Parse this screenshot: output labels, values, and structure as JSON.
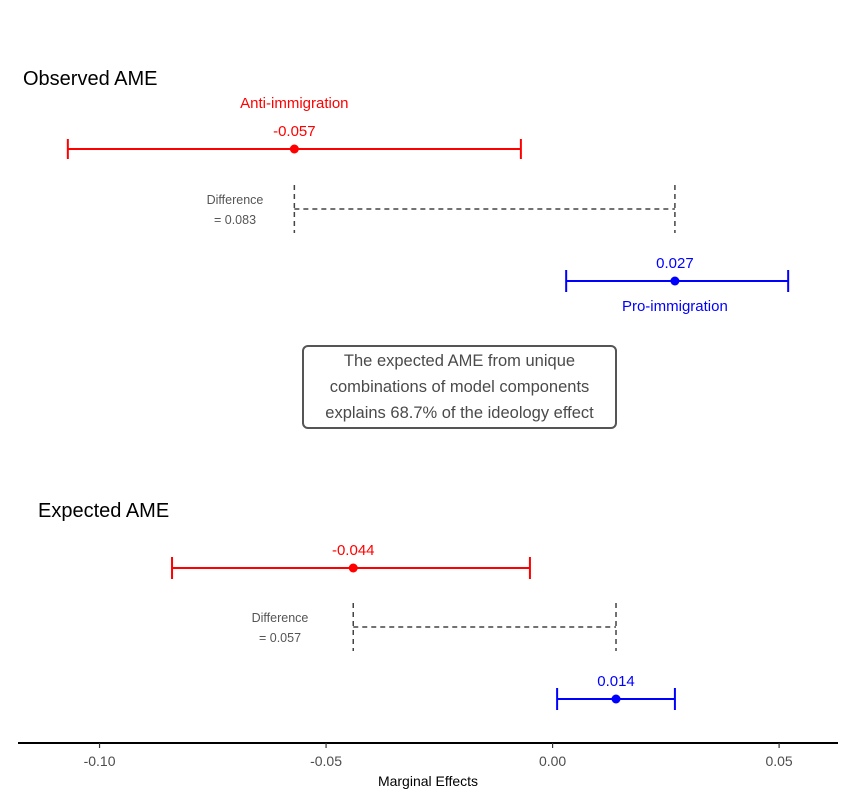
{
  "chart_data": {
    "type": "errorbar",
    "xlabel": "Marginal Effects",
    "xlim": [
      -0.118,
      0.063
    ],
    "xticks": [
      -0.1,
      -0.05,
      0.0,
      0.05
    ],
    "xtick_labels": [
      "-0.10",
      "-0.05",
      "0.00",
      "0.05"
    ],
    "colors": {
      "anti": "#ff0000",
      "pro": "#0000ff",
      "difference": "#444444"
    },
    "panels": [
      {
        "title": "Observed AME",
        "anti": {
          "label": "Anti-immigration",
          "estimate": -0.057,
          "estimate_label": "-0.057",
          "lower": -0.107,
          "upper": -0.007
        },
        "difference": {
          "label_line1": "Difference",
          "label_line2": "= 0.083",
          "from": -0.057,
          "to": 0.027
        },
        "pro": {
          "label": "Pro-immigration",
          "estimate": 0.027,
          "estimate_label": "0.027",
          "lower": 0.003,
          "upper": 0.052
        }
      },
      {
        "title": "Expected AME",
        "anti": {
          "label": "",
          "estimate": -0.044,
          "estimate_label": "-0.044",
          "lower": -0.084,
          "upper": -0.005
        },
        "difference": {
          "label_line1": "Difference",
          "label_line2": "= 0.057",
          "from": -0.044,
          "to": 0.014
        },
        "pro": {
          "label": "",
          "estimate": 0.014,
          "estimate_label": "0.014",
          "lower": 0.001,
          "upper": 0.027
        }
      }
    ]
  },
  "annotation": {
    "lines": [
      "The expected AME from unique",
      "combinations of model components",
      "explains 68.7% of the ideology effect"
    ]
  }
}
